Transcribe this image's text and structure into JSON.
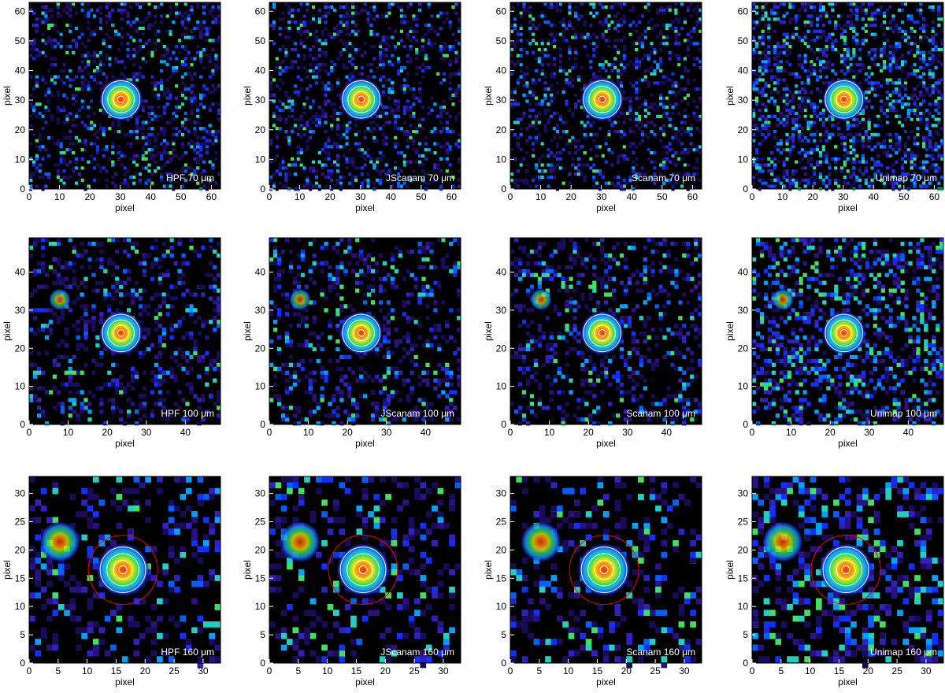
{
  "chart_data": [
    {
      "type": "heatmap",
      "label": "HPF 70 μm",
      "xlabel": "pixel",
      "ylabel": "pixel",
      "xlim": [
        0,
        63
      ],
      "ylim": [
        0,
        63
      ],
      "xticks": [
        0,
        10,
        20,
        30,
        40,
        50,
        60
      ],
      "yticks": [
        0,
        10,
        20,
        30,
        40,
        50,
        60
      ]
    },
    {
      "type": "heatmap",
      "label": "JScanam 70 μm",
      "xlabel": "pixel",
      "ylabel": "pixel",
      "xlim": [
        0,
        63
      ],
      "ylim": [
        0,
        63
      ],
      "xticks": [
        0,
        10,
        20,
        30,
        40,
        50,
        60
      ],
      "yticks": [
        0,
        10,
        20,
        30,
        40,
        50,
        60
      ]
    },
    {
      "type": "heatmap",
      "label": "Scanam 70 μm",
      "xlabel": "pixel",
      "ylabel": "pixel",
      "xlim": [
        0,
        63
      ],
      "ylim": [
        0,
        63
      ],
      "xticks": [
        0,
        10,
        20,
        30,
        40,
        50,
        60
      ],
      "yticks": [
        0,
        10,
        20,
        30,
        40,
        50,
        60
      ]
    },
    {
      "type": "heatmap",
      "label": "Unimap 70 μm",
      "xlabel": "pixel",
      "ylabel": "pixel",
      "xlim": [
        0,
        63
      ],
      "ylim": [
        0,
        63
      ],
      "xticks": [
        0,
        10,
        20,
        30,
        40,
        50,
        60
      ],
      "yticks": [
        0,
        10,
        20,
        30,
        40,
        50,
        60
      ]
    },
    {
      "type": "heatmap",
      "label": "HPF 100 μm",
      "xlabel": "pixel",
      "ylabel": "pixel",
      "xlim": [
        0,
        49
      ],
      "ylim": [
        0,
        49
      ],
      "xticks": [
        0,
        10,
        20,
        30,
        40
      ],
      "yticks": [
        0,
        10,
        20,
        30,
        40
      ]
    },
    {
      "type": "heatmap",
      "label": "JScanam 100 μm",
      "xlabel": "pixel",
      "ylabel": "pixel",
      "xlim": [
        0,
        49
      ],
      "ylim": [
        0,
        49
      ],
      "xticks": [
        0,
        10,
        20,
        30,
        40
      ],
      "yticks": [
        0,
        10,
        20,
        30,
        40
      ]
    },
    {
      "type": "heatmap",
      "label": "Scanam 100 μm",
      "xlabel": "pixel",
      "ylabel": "pixel",
      "xlim": [
        0,
        49
      ],
      "ylim": [
        0,
        49
      ],
      "xticks": [
        0,
        10,
        20,
        30,
        40
      ],
      "yticks": [
        0,
        10,
        20,
        30,
        40
      ]
    },
    {
      "type": "heatmap",
      "label": "Unimap 100 μm",
      "xlabel": "pixel",
      "ylabel": "pixel",
      "xlim": [
        0,
        49
      ],
      "ylim": [
        0,
        49
      ],
      "xticks": [
        0,
        10,
        20,
        30,
        40
      ],
      "yticks": [
        0,
        10,
        20,
        30,
        40
      ]
    },
    {
      "type": "heatmap",
      "label": "HPF 160 μm",
      "xlabel": "pixel",
      "ylabel": "pixel",
      "xlim": [
        0,
        33
      ],
      "ylim": [
        0,
        33
      ],
      "xticks": [
        0,
        5,
        10,
        15,
        20,
        25,
        30
      ],
      "yticks": [
        0,
        5,
        10,
        15,
        20,
        25,
        30
      ]
    },
    {
      "type": "heatmap",
      "label": "JScanam 160 μm",
      "xlabel": "pixel",
      "ylabel": "pixel",
      "xlim": [
        0,
        33
      ],
      "ylim": [
        0,
        33
      ],
      "xticks": [
        0,
        5,
        10,
        15,
        20,
        25,
        30
      ],
      "yticks": [
        0,
        5,
        10,
        15,
        20,
        25,
        30
      ]
    },
    {
      "type": "heatmap",
      "label": "Scanam 160 μm",
      "xlabel": "pixel",
      "ylabel": "pixel",
      "xlim": [
        0,
        33
      ],
      "ylim": [
        0,
        33
      ],
      "xticks": [
        0,
        5,
        10,
        15,
        20,
        25,
        30
      ],
      "yticks": [
        0,
        5,
        10,
        15,
        20,
        25,
        30
      ]
    },
    {
      "type": "heatmap",
      "label": "Unimap 160 μm",
      "xlabel": "pixel",
      "ylabel": "pixel",
      "xlim": [
        0,
        33
      ],
      "ylim": [
        0,
        33
      ],
      "xticks": [
        0,
        5,
        10,
        15,
        20,
        25,
        30
      ],
      "yticks": [
        0,
        5,
        10,
        15,
        20,
        25,
        30
      ]
    }
  ]
}
